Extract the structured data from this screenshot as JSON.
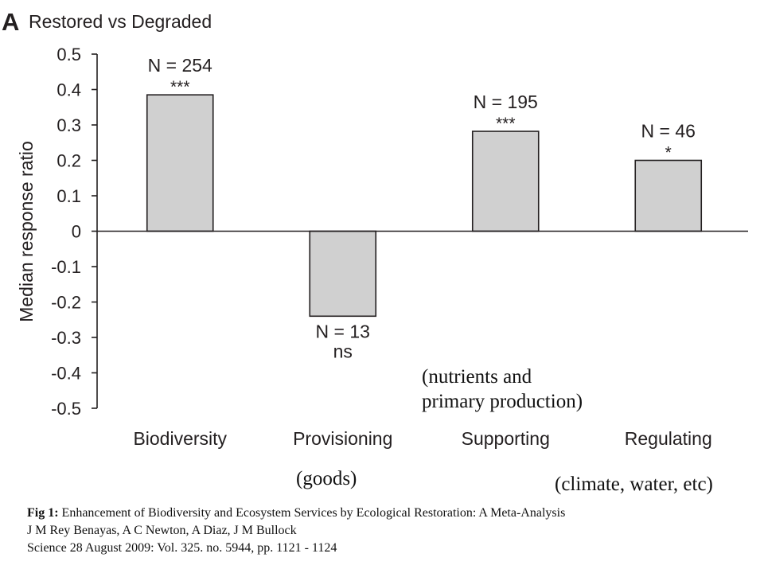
{
  "panel": {
    "letter": "A",
    "title": "Restored vs Degraded"
  },
  "chart_data": {
    "type": "bar",
    "title": "Restored vs Degraded",
    "ylabel": "Median response ratio",
    "xlabel": "",
    "categories": [
      "Biodiversity",
      "Provisioning",
      "Supporting",
      "Regulating"
    ],
    "values": [
      0.385,
      -0.24,
      0.282,
      0.2
    ],
    "n_labels": [
      "N = 254",
      "N = 13",
      "N = 195",
      "N = 46"
    ],
    "significance": [
      "***",
      "ns",
      "***",
      "*"
    ],
    "ylim": [
      -0.5,
      0.5
    ],
    "yticks": [
      "0.5",
      "0.4",
      "0.3",
      "0.2",
      "0.1",
      "0",
      "-0.1",
      "-0.2",
      "-0.3",
      "-0.4",
      "-0.5"
    ],
    "bar_color": "#d0d0d0",
    "grid": false
  },
  "annotations": {
    "supporting_line1": "(nutrients and",
    "supporting_line2": "primary production)",
    "provisioning": "(goods)",
    "regulating": "(climate, water, etc)"
  },
  "caption": {
    "fig_label": "Fig 1:",
    "title": " Enhancement of Biodiversity and Ecosystem Services by Ecological Restoration: A Meta-Analysis",
    "authors": "J M Rey Benayas, A C Newton, A Diaz, J M Bullock",
    "citation": "Science 28 August 2009:  Vol. 325. no. 5944, pp. 1121 - 1124"
  }
}
